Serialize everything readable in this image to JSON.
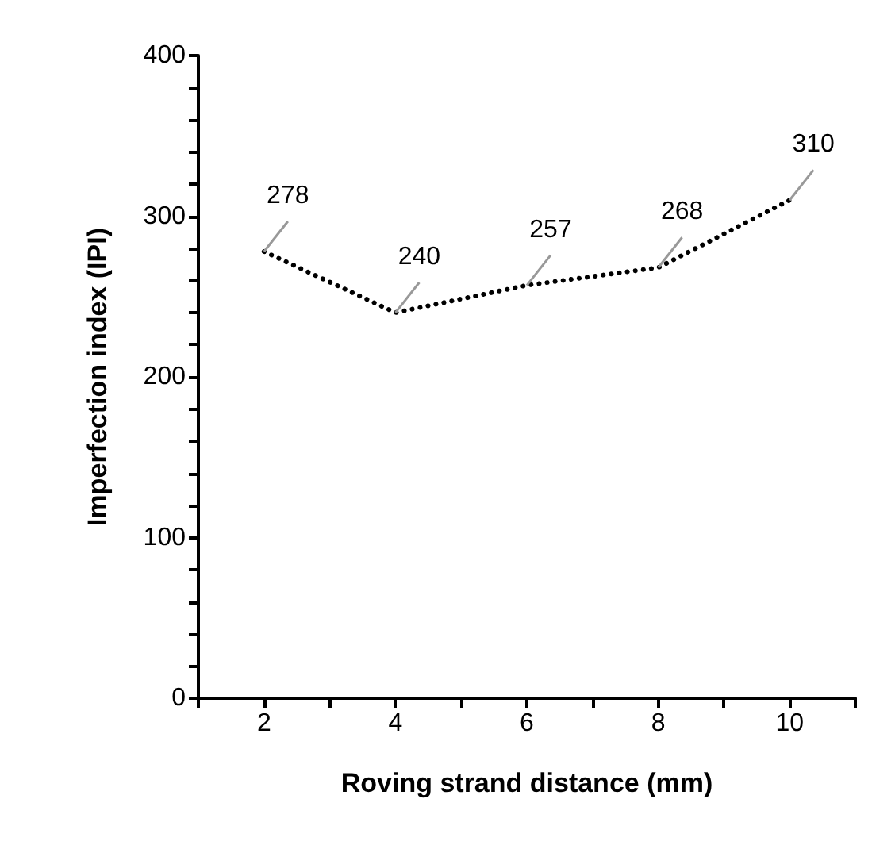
{
  "chart_data": {
    "type": "line",
    "xlabel": "Roving strand distance (mm)",
    "ylabel": "Imperfection index (IPI)",
    "x": [
      2,
      4,
      6,
      8,
      10
    ],
    "series": [
      {
        "color": "#000000",
        "values": [
          278,
          240,
          257,
          268,
          310
        ]
      }
    ],
    "xlim": [
      1,
      11
    ],
    "xticks": [
      {
        "value": 1,
        "label": null
      },
      2,
      {
        "value": 3,
        "label": null
      },
      4,
      {
        "value": 5,
        "label": null
      },
      6,
      {
        "value": 7,
        "label": null
      },
      8,
      {
        "value": 9,
        "label": null
      },
      10,
      {
        "value": 11,
        "label": null
      }
    ],
    "ylim": [
      0,
      400
    ],
    "yticks": [
      0,
      {
        "value": 20,
        "label": null
      },
      {
        "value": 40,
        "label": null
      },
      {
        "value": 60,
        "label": null
      },
      {
        "value": 80,
        "label": null
      },
      100,
      {
        "value": 120,
        "label": null
      },
      {
        "value": 140,
        "label": null
      },
      {
        "value": 160,
        "label": null
      },
      {
        "value": 180,
        "label": null
      },
      200,
      {
        "value": 220,
        "label": null
      },
      {
        "value": 240,
        "label": null
      },
      {
        "value": 260,
        "label": null
      },
      {
        "value": 280,
        "label": null
      },
      300,
      {
        "value": 320,
        "label": null
      },
      {
        "value": 340,
        "label": null
      },
      {
        "value": 360,
        "label": null
      },
      {
        "value": 380,
        "label": null
      },
      400
    ],
    "grid": false,
    "marker": "none",
    "line_style": "dotted",
    "data_labels": true
  }
}
